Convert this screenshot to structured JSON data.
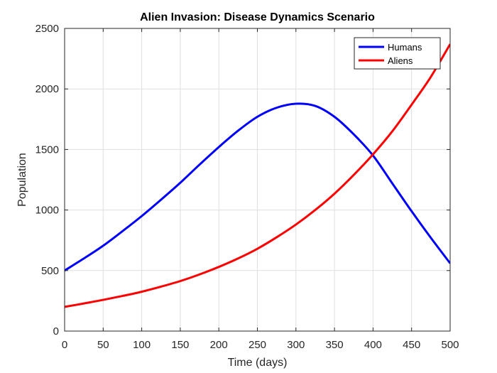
{
  "chart_data": {
    "type": "line",
    "title": "Alien Invasion: Disease Dynamics Scenario",
    "xlabel": "Time (days)",
    "ylabel": "Population",
    "xlim": [
      0,
      500
    ],
    "ylim": [
      0,
      2500
    ],
    "xticks": [
      0,
      50,
      100,
      150,
      200,
      250,
      300,
      350,
      400,
      450,
      500
    ],
    "yticks": [
      0,
      500,
      1000,
      1500,
      2000,
      2500
    ],
    "grid": true,
    "legend_location": "top-right",
    "series": [
      {
        "name": "Humans",
        "color": "#0000ff",
        "x": [
          0,
          25,
          50,
          75,
          100,
          125,
          150,
          175,
          200,
          225,
          250,
          275,
          300,
          325,
          350,
          375,
          400,
          425,
          450,
          475,
          500
        ],
        "y": [
          500,
          600,
          705,
          825,
          950,
          1085,
          1225,
          1375,
          1520,
          1655,
          1770,
          1845,
          1878,
          1860,
          1770,
          1625,
          1450,
          1220,
          990,
          770,
          560
        ]
      },
      {
        "name": "Aliens",
        "color": "#ff0000",
        "x": [
          0,
          25,
          50,
          75,
          100,
          125,
          150,
          175,
          200,
          225,
          250,
          275,
          300,
          325,
          350,
          375,
          400,
          425,
          450,
          475,
          500
        ],
        "y": [
          200,
          228,
          258,
          290,
          325,
          367,
          413,
          468,
          530,
          600,
          680,
          775,
          880,
          1000,
          1135,
          1290,
          1460,
          1650,
          1870,
          2100,
          2370
        ]
      }
    ]
  }
}
